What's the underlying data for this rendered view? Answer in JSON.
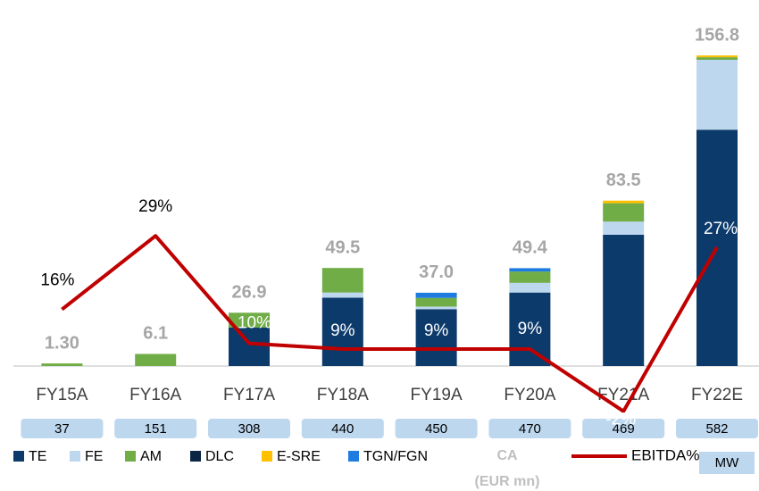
{
  "chart_data": {
    "type": "bar",
    "stacked": true,
    "categories": [
      "FY15A",
      "FY16A",
      "FY17A",
      "FY18A",
      "FY19A",
      "FY20A",
      "FY21A",
      "FY22E"
    ],
    "series": [
      {
        "name": "TE",
        "color": "#0c3a6b",
        "values": [
          0,
          0,
          19.4,
          34.5,
          28.7,
          37.1,
          66.3,
          119.3
        ]
      },
      {
        "name": "FE",
        "color": "#bdd7ee",
        "values": [
          0,
          0,
          0,
          2.6,
          1.3,
          4.9,
          6.6,
          35.3
        ]
      },
      {
        "name": "AM",
        "color": "#70ad47",
        "values": [
          1.3,
          6.1,
          7.5,
          12.4,
          4.4,
          5.7,
          9.3,
          1.3
        ]
      },
      {
        "name": "DLC",
        "color": "#0b2545",
        "values": [
          0,
          0,
          0,
          0,
          0,
          0,
          0,
          0
        ]
      },
      {
        "name": "E-SRE",
        "color": "#ffc000",
        "values": [
          0,
          0,
          0,
          0,
          0,
          0,
          1.3,
          0.9
        ]
      },
      {
        "name": "TGN/FGN",
        "color": "#1e7be0",
        "values": [
          0,
          0,
          0,
          0,
          2.6,
          1.7,
          0,
          0
        ]
      },
      {
        "name": "EBITDA%",
        "type": "line",
        "axis": "y2",
        "color": "#c00000",
        "values": [
          16,
          29,
          10,
          9,
          9,
          9,
          -2,
          27
        ],
        "value_labels": [
          "16%",
          "29%",
          "10%",
          "9%",
          "9%",
          "9%",
          "-2%",
          "27%"
        ]
      }
    ],
    "totals": [
      1.3,
      6.1,
      26.9,
      49.5,
      37.0,
      49.4,
      83.5,
      156.8
    ],
    "total_labels": [
      "1.30",
      "6.1",
      "26.9",
      "49.5",
      "37.0",
      "49.4",
      "83.5",
      "156.8"
    ],
    "capacity": {
      "label": "MW",
      "values": [
        37,
        151,
        308,
        440,
        450,
        470,
        469,
        582
      ]
    },
    "axis_label": "CA",
    "axis_unit": "(EUR mn)",
    "ylim": [
      0,
      160
    ],
    "y2lim": [
      6,
      62
    ]
  }
}
